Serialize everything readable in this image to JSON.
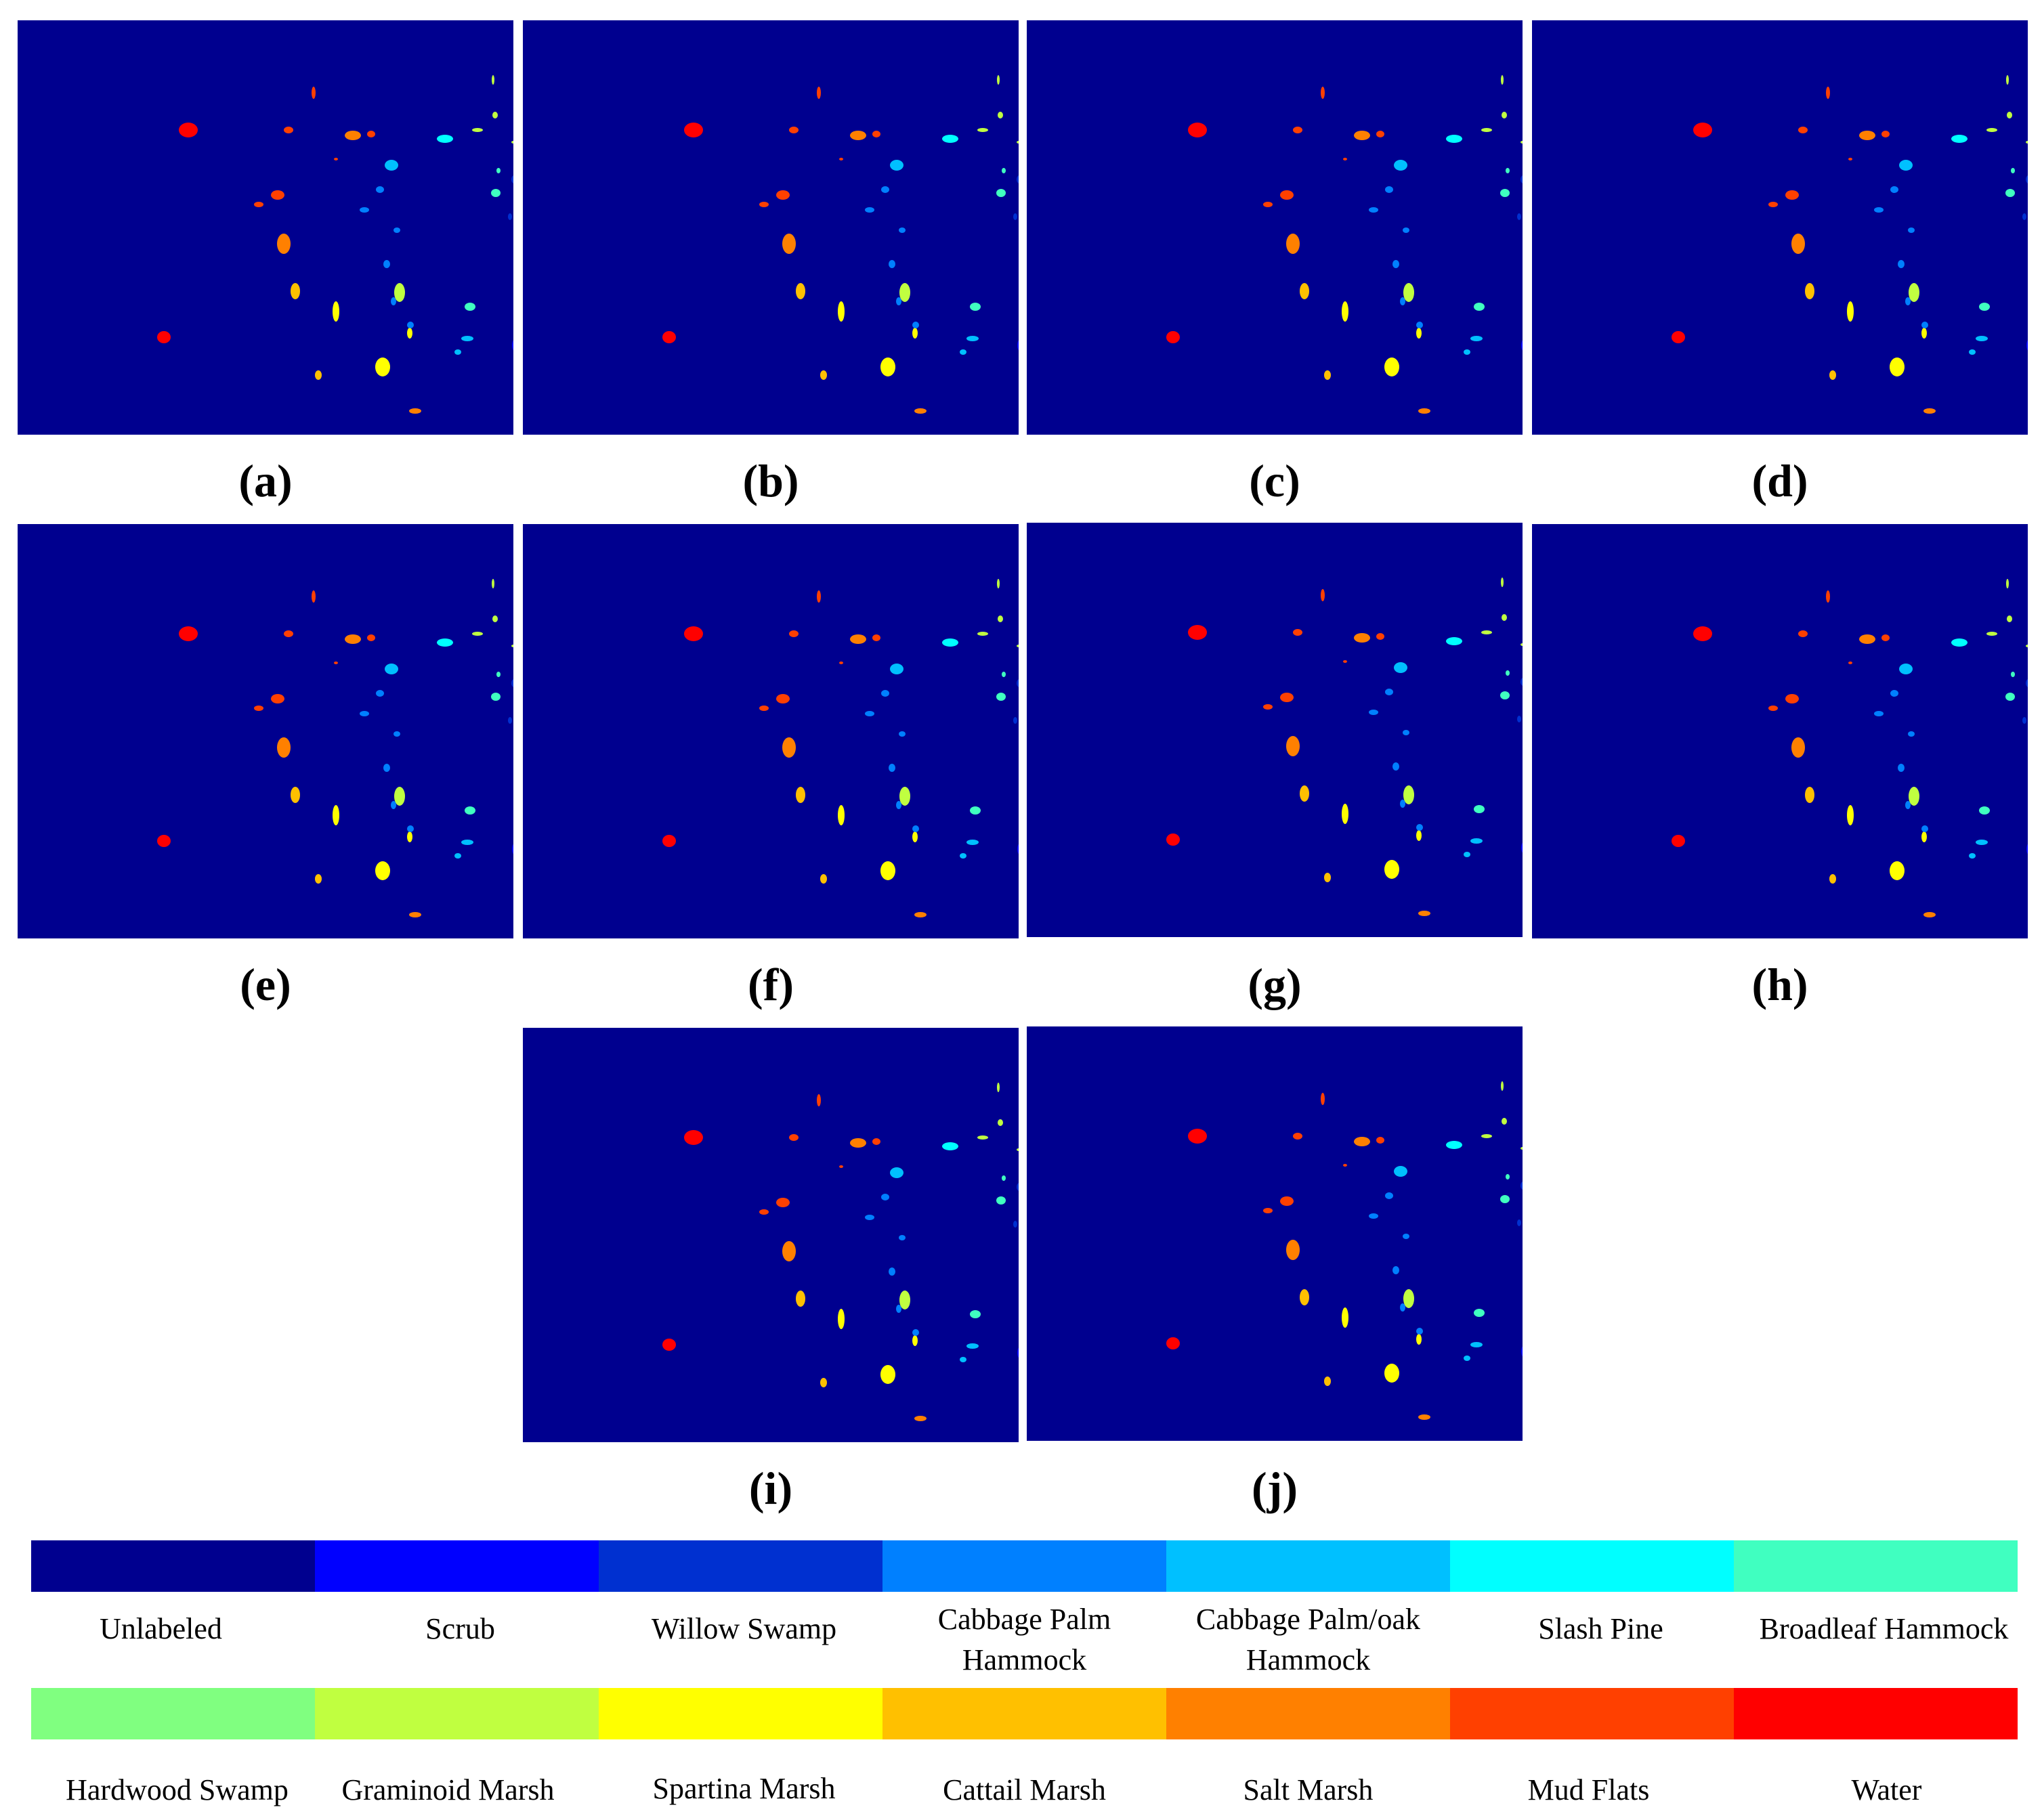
{
  "panels": [
    {
      "id": "a",
      "label": "(a)"
    },
    {
      "id": "b",
      "label": "(b)"
    },
    {
      "id": "c",
      "label": "(c)"
    },
    {
      "id": "d",
      "label": "(d)"
    },
    {
      "id": "e",
      "label": "(e)"
    },
    {
      "id": "f",
      "label": "(f)"
    },
    {
      "id": "g",
      "label": "(g)"
    },
    {
      "id": "h",
      "label": "(h)"
    },
    {
      "id": "i",
      "label": "(i)"
    },
    {
      "id": "j",
      "label": "(j)"
    }
  ],
  "legend": [
    {
      "name": "Unlabeled",
      "color": "#00008f"
    },
    {
      "name": "Scrub",
      "color": "#0000ff"
    },
    {
      "name": "Willow Swamp",
      "color": "#0030d0"
    },
    {
      "name": "Cabbage Palm\nHammock",
      "color": "#0080ff"
    },
    {
      "name": "Cabbage Palm/oak\nHammock",
      "color": "#00c0ff"
    },
    {
      "name": "Slash Pine",
      "color": "#00ffff"
    },
    {
      "name": "Broadleaf Hammock",
      "color": "#40ffc0"
    },
    {
      "name": "Hardwood Swamp",
      "color": "#80ff80"
    },
    {
      "name": "Graminoid Marsh",
      "color": "#c0ff40"
    },
    {
      "name": "Spartina Marsh",
      "color": "#ffff00"
    },
    {
      "name": "Cattail Marsh",
      "color": "#ffc000"
    },
    {
      "name": "Salt Marsh",
      "color": "#ff8000"
    },
    {
      "name": "Mud Flats",
      "color": "#ff4000"
    },
    {
      "name": "Water",
      "color": "#ff0000"
    }
  ]
}
